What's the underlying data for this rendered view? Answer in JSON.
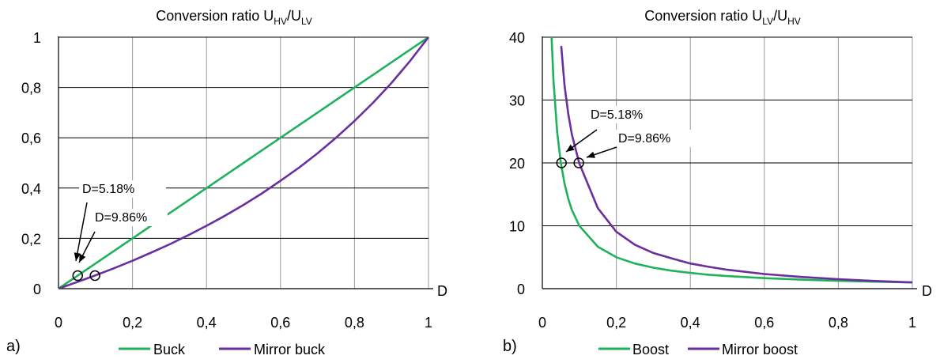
{
  "chart_data": [
    {
      "panel_label": "a)",
      "type": "line",
      "title": "Conversion ratio U",
      "title_sub1": "HV",
      "title_mid": "/U",
      "title_sub2": "LV",
      "xlabel": "D",
      "ylabel": "",
      "xlim": [
        0,
        1
      ],
      "ylim": [
        0,
        1
      ],
      "xticks": [
        0,
        0.2,
        0.4,
        0.6,
        0.8,
        1
      ],
      "xtick_labels": [
        "0",
        "0,2",
        "0,4",
        "0,6",
        "0,8",
        "1"
      ],
      "yticks": [
        0,
        0.2,
        0.4,
        0.6,
        0.8,
        1
      ],
      "ytick_labels": [
        "0",
        "0,2",
        "0,4",
        "0,6",
        "0,8",
        "1"
      ],
      "grid": true,
      "legend_position": "bottom",
      "series": [
        {
          "name": "Buck",
          "color": "#1fb25a",
          "x": [
            0,
            0.05,
            0.1,
            0.15,
            0.2,
            0.25,
            0.3,
            0.35,
            0.4,
            0.45,
            0.5,
            0.55,
            0.6,
            0.65,
            0.7,
            0.75,
            0.8,
            0.85,
            0.9,
            0.95,
            1.0
          ],
          "y": [
            0,
            0.05,
            0.1,
            0.15,
            0.2,
            0.25,
            0.3,
            0.35,
            0.4,
            0.45,
            0.5,
            0.55,
            0.6,
            0.65,
            0.7,
            0.75,
            0.8,
            0.85,
            0.9,
            0.95,
            1.0
          ]
        },
        {
          "name": "Mirror buck",
          "color": "#6a2e9e",
          "x": [
            0,
            0.05,
            0.1,
            0.15,
            0.2,
            0.25,
            0.3,
            0.35,
            0.4,
            0.45,
            0.5,
            0.55,
            0.6,
            0.65,
            0.7,
            0.75,
            0.8,
            0.85,
            0.9,
            0.95,
            1.0
          ],
          "y": [
            0,
            0.026,
            0.053,
            0.081,
            0.111,
            0.143,
            0.176,
            0.212,
            0.25,
            0.29,
            0.333,
            0.379,
            0.429,
            0.481,
            0.538,
            0.6,
            0.667,
            0.739,
            0.818,
            0.905,
            1.0
          ]
        }
      ],
      "markers": [
        {
          "x": 0.0518,
          "y": 0.0518,
          "label": "D=5.18%"
        },
        {
          "x": 0.0986,
          "y": 0.0518,
          "label": "D=9.86%"
        }
      ]
    },
    {
      "panel_label": "b)",
      "type": "line",
      "title": "Conversion ratio U",
      "title_sub1": "LV",
      "title_mid": "/U",
      "title_sub2": "HV",
      "xlabel": "D",
      "ylabel": "",
      "xlim": [
        0,
        1
      ],
      "ylim": [
        0,
        40
      ],
      "xticks": [
        0,
        0.2,
        0.4,
        0.6,
        0.8,
        1
      ],
      "xtick_labels": [
        "0",
        "0,2",
        "0,4",
        "0,6",
        "0,8",
        "1"
      ],
      "yticks": [
        0,
        10,
        20,
        30,
        40
      ],
      "ytick_labels": [
        "0",
        "10",
        "20",
        "30",
        "40"
      ],
      "grid": true,
      "legend_position": "bottom",
      "series": [
        {
          "name": "Boost",
          "color": "#1fb25a",
          "x": [
            0.025,
            0.03,
            0.04,
            0.05,
            0.06,
            0.07,
            0.08,
            0.1,
            0.15,
            0.2,
            0.25,
            0.3,
            0.35,
            0.4,
            0.45,
            0.5,
            0.6,
            0.7,
            0.8,
            0.9,
            1.0
          ],
          "y": [
            40,
            33.3,
            25,
            20,
            16.7,
            14.3,
            12.5,
            10,
            6.67,
            5,
            4,
            3.33,
            2.86,
            2.5,
            2.22,
            2,
            1.67,
            1.43,
            1.25,
            1.11,
            1
          ]
        },
        {
          "name": "Mirror boost",
          "color": "#6a2e9e",
          "x": [
            0.051,
            0.06,
            0.07,
            0.08,
            0.1,
            0.15,
            0.2,
            0.25,
            0.3,
            0.35,
            0.4,
            0.45,
            0.5,
            0.6,
            0.7,
            0.8,
            0.9,
            1.0
          ],
          "y": [
            38.6,
            32.3,
            27.8,
            24.5,
            19.9,
            12.8,
            9.05,
            7.0,
            5.67,
            4.82,
            4.0,
            3.47,
            3.0,
            2.33,
            1.86,
            1.5,
            1.22,
            1.0
          ]
        }
      ],
      "markers": [
        {
          "x": 0.0518,
          "y": 20,
          "label": "D=5.18%"
        },
        {
          "x": 0.0986,
          "y": 20,
          "label": "D=9.86%"
        }
      ]
    }
  ]
}
